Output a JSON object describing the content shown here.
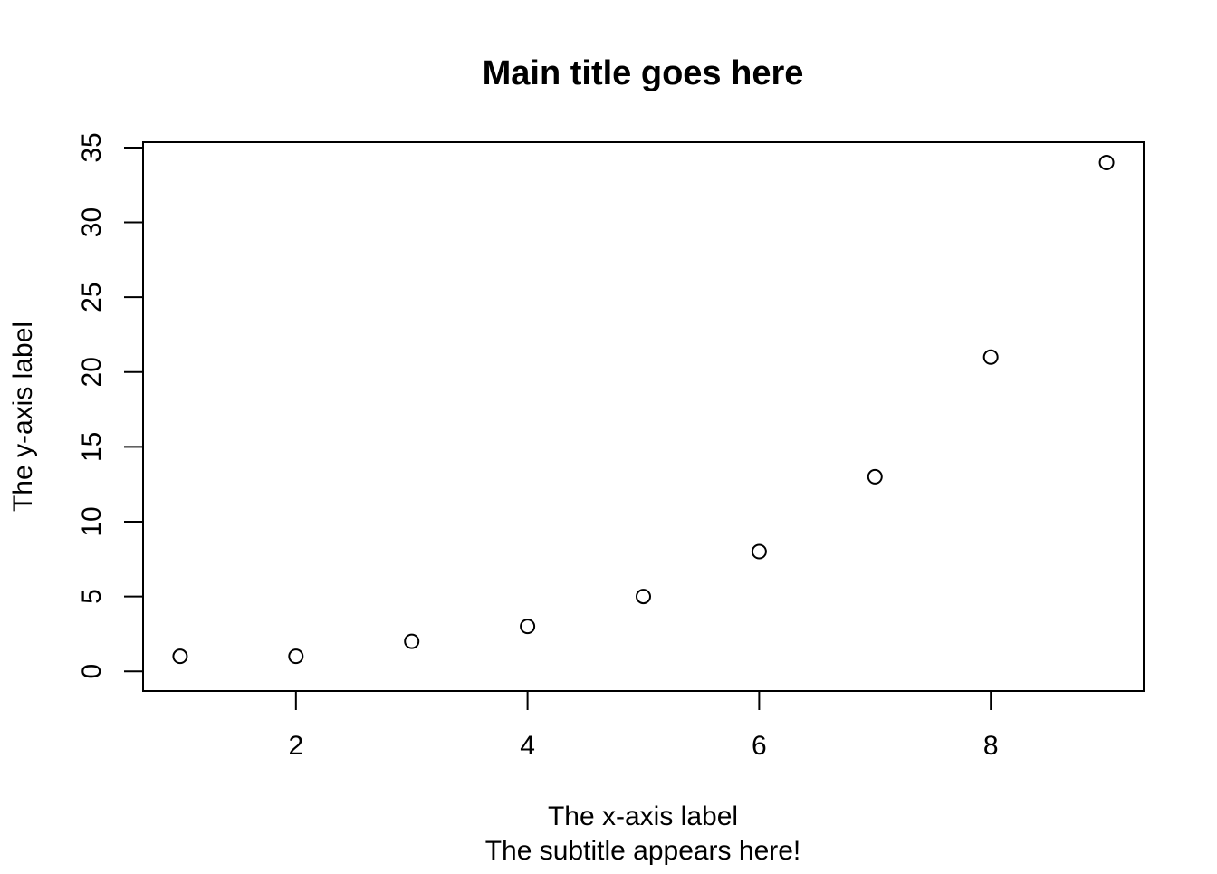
{
  "chart_data": {
    "type": "scatter",
    "title": "Main title goes here",
    "subtitle": "The subtitle appears here!",
    "xlabel": "The x-axis label",
    "ylabel": "The y-axis label",
    "xlim": [
      0.68,
      9.32
    ],
    "ylim": [
      -1.32,
      35.36
    ],
    "x_ticks": [
      2,
      4,
      6,
      8
    ],
    "y_ticks": [
      0,
      5,
      10,
      15,
      20,
      25,
      30,
      35
    ],
    "grid": false,
    "legend": "none",
    "marker": "open-circle",
    "series": [
      {
        "x": [
          1,
          2,
          3,
          4,
          5,
          6,
          7,
          8,
          9
        ],
        "y": [
          1,
          1,
          2,
          3,
          5,
          8,
          13,
          21,
          34
        ]
      }
    ]
  }
}
